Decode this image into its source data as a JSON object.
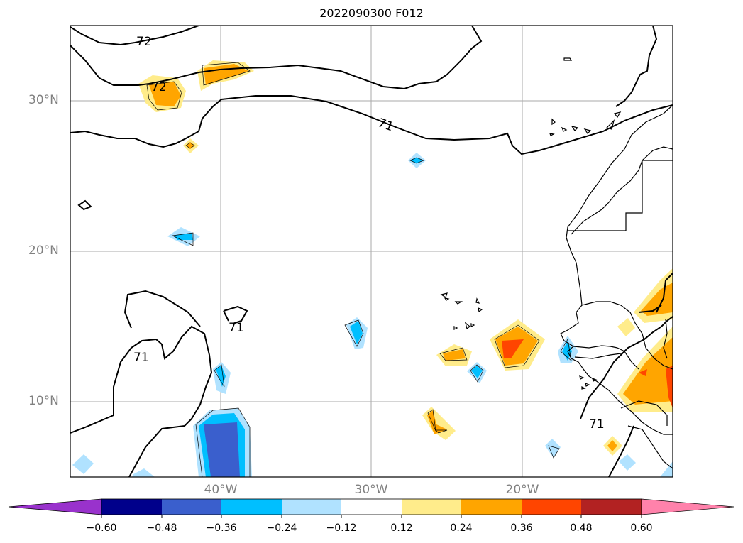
{
  "title": "2022090300 F012",
  "lat_labels": [
    "30°N",
    "20°N",
    "10°N"
  ],
  "lon_labels": [
    "40°W",
    "30°W",
    "20°W"
  ],
  "contour_labels": [
    "72",
    "72",
    "71",
    "71",
    "71",
    "71"
  ],
  "colorbar": {
    "ticks": [
      "−0.60",
      "−0.48",
      "−0.36",
      "−0.24",
      "−0.12",
      "0.12",
      "0.24",
      "0.36",
      "0.48",
      "0.60"
    ],
    "colors": [
      "#9932cc",
      "#00008b",
      "#3a5fcd",
      "#00bfff",
      "#b0e2ff",
      "#ffffff",
      "#ffec8b",
      "#ffa500",
      "#ff4500",
      "#b22222",
      "#ff82ab"
    ]
  },
  "icons": {
    "map": "weather-map",
    "coastline": "coastline-icon",
    "colorbar": "colorbar-icon"
  }
}
